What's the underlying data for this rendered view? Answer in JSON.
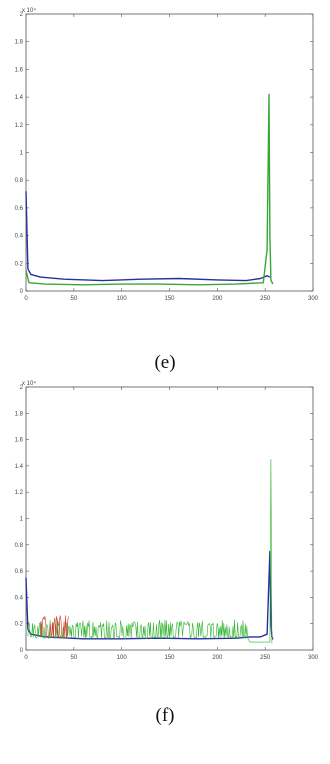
{
  "chart_data": [
    {
      "type": "line",
      "panel_label": "(e)",
      "y_exponent_label": "x 10⁴",
      "xlim": [
        0,
        300
      ],
      "ylim": [
        0,
        2
      ],
      "xticks": [
        "0",
        "50",
        "100",
        "150",
        "200",
        "250",
        "300"
      ],
      "yticks": [
        "0",
        "0.2",
        "0.4",
        "0.6",
        "0.8",
        "1",
        "1.2",
        "1.4",
        "1.6",
        "1.8",
        "2"
      ],
      "grid": false,
      "colors": {
        "blue": "#2a2f9e",
        "green": "#3aa63a",
        "red": "#d23a2a",
        "axis": "#555555"
      },
      "series": [
        {
          "color": "blue",
          "x": [
            0,
            2,
            5,
            15,
            40,
            80,
            120,
            160,
            200,
            230,
            245,
            252,
            255
          ],
          "y": [
            0.72,
            0.16,
            0.12,
            0.1,
            0.085,
            0.075,
            0.085,
            0.09,
            0.08,
            0.075,
            0.09,
            0.11,
            0.1
          ]
        },
        {
          "color": "green",
          "x": [
            0,
            3,
            20,
            60,
            100,
            140,
            180,
            220,
            248,
            252,
            254,
            255,
            256,
            258
          ],
          "y": [
            0.15,
            0.06,
            0.05,
            0.045,
            0.05,
            0.05,
            0.045,
            0.05,
            0.06,
            0.3,
            1.42,
            0.4,
            0.08,
            0.05
          ]
        }
      ]
    },
    {
      "type": "line",
      "panel_label": "(f)",
      "y_exponent_label": "x 10⁴",
      "xlim": [
        0,
        300
      ],
      "ylim": [
        0,
        2
      ],
      "xticks": [
        "0",
        "50",
        "100",
        "150",
        "200",
        "250",
        "300"
      ],
      "yticks": [
        "0",
        "0.2",
        "0.4",
        "0.6",
        "0.8",
        "1",
        "1.2",
        "1.4",
        "1.6",
        "1.8",
        "2"
      ],
      "grid": false,
      "colors": {
        "blue": "#2a2f9e",
        "green": "#2fb32f",
        "red": "#d8332a",
        "axis": "#555555"
      },
      "series": [
        {
          "color": "blue",
          "x": [
            0,
            2,
            5,
            20,
            60,
            100,
            140,
            180,
            220,
            235,
            245,
            252,
            255,
            256,
            257,
            258
          ],
          "y": [
            0.55,
            0.16,
            0.12,
            0.1,
            0.085,
            0.085,
            0.09,
            0.085,
            0.09,
            0.1,
            0.1,
            0.12,
            0.75,
            0.2,
            0.1,
            0.08
          ]
        },
        {
          "color": "green",
          "noisy": true,
          "x0": 2,
          "x1": 232,
          "base": 0.11,
          "amp": 0.12,
          "spike_x": 256,
          "spike_y": 1.45
        },
        {
          "color": "red",
          "noisy": true,
          "x0": 15,
          "x1": 45,
          "base": 0.12,
          "amp": 0.16
        }
      ]
    }
  ]
}
